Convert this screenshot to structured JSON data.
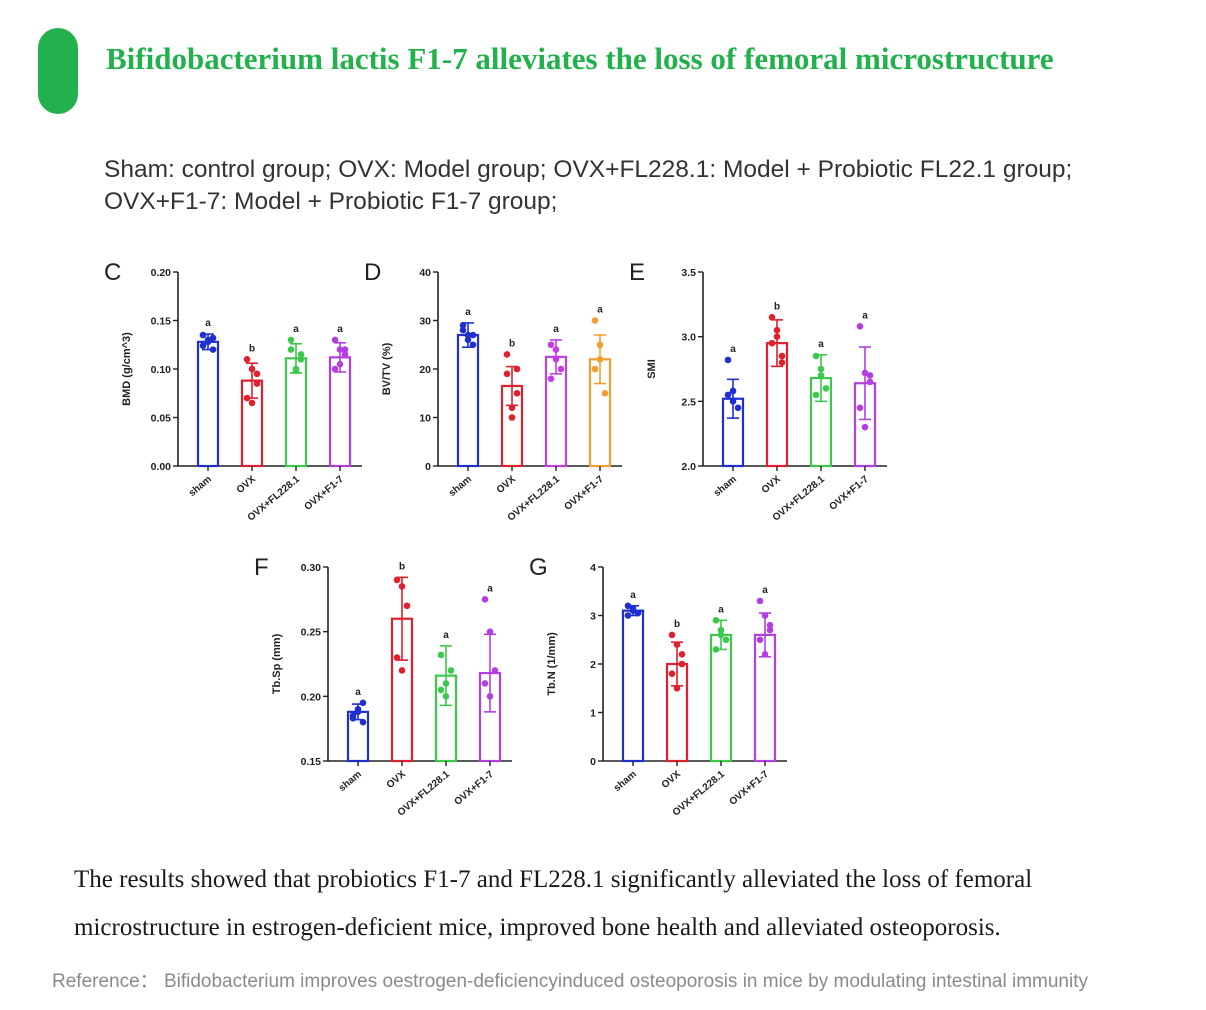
{
  "header": {
    "title": "Bifidobacterium lactis F1-7 alleviates the loss of femoral microstructure",
    "accent_color": "#22b14c"
  },
  "legend_text": {
    "line1": "Sham: control group; OVX: Model group; OVX+FL228.1: Model + Probiotic FL22.1 group;",
    "line2": "OVX+F1-7: Model + Probiotic F1-7 group;"
  },
  "results": {
    "line1": "The results showed that probiotics F1-7 and FL228.1 significantly alleviated the loss of femoral",
    "line2": "microstructure in estrogen-deficient mice, improved bone health and alleviated osteoporosis."
  },
  "reference": "Reference： Bifidobacterium improves oestrogen-deficiencyinduced osteoporosis in mice by modulating intestinal immunity",
  "chart_data": [
    {
      "panel": "C",
      "type": "bar",
      "categories": [
        "sham",
        "OVX",
        "OVX+FL228.1",
        "OVX+F1-7"
      ],
      "colors": [
        "#1f2fd0",
        "#e0202e",
        "#3cc84a",
        "#b33fe0"
      ],
      "ylabel": "BMD (g/cm^3)",
      "ylim": [
        0,
        0.2
      ],
      "yticks": [
        0.0,
        0.05,
        0.1,
        0.15,
        0.2
      ],
      "ytick_labels": [
        "0.00",
        "0.05",
        "0.10",
        "0.15",
        "0.20"
      ],
      "values": [
        0.128,
        0.088,
        0.111,
        0.112
      ],
      "errors": [
        0.008,
        0.018,
        0.015,
        0.015
      ],
      "significance": [
        "a",
        "b",
        "a",
        "a"
      ],
      "points": [
        [
          0.124,
          0.13,
          0.12,
          0.135,
          0.128,
          0.132
        ],
        [
          0.07,
          0.1,
          0.085,
          0.11,
          0.065,
          0.095
        ],
        [
          0.12,
          0.1,
          0.115,
          0.13,
          0.098,
          0.11
        ],
        [
          0.13,
          0.105,
          0.115,
          0.1,
          0.12,
          0.12
        ]
      ]
    },
    {
      "panel": "D",
      "type": "bar",
      "categories": [
        "sham",
        "OVX",
        "OVX+FL228.1",
        "OVX+F1-7"
      ],
      "colors": [
        "#1f2fd0",
        "#e0202e",
        "#c23fe0",
        "#f0a030"
      ],
      "ylabel": "BV/TV (%)",
      "ylim": [
        0,
        40
      ],
      "yticks": [
        0,
        10,
        20,
        30,
        40
      ],
      "ytick_labels": [
        "0",
        "10",
        "20",
        "30",
        "40"
      ],
      "values": [
        27,
        16.5,
        22.5,
        22
      ],
      "errors": [
        2.5,
        4,
        3.5,
        5
      ],
      "significance": [
        "a",
        "b",
        "a",
        "a"
      ],
      "points": [
        [
          29,
          27,
          25,
          28,
          26,
          27
        ],
        [
          23,
          12,
          15,
          19,
          10,
          20
        ],
        [
          25,
          22,
          20,
          18,
          24
        ],
        [
          30,
          25,
          15,
          20,
          22
        ]
      ]
    },
    {
      "panel": "E",
      "type": "bar",
      "categories": [
        "sham",
        "OVX",
        "OVX+FL228.1",
        "OVX+F1-7"
      ],
      "colors": [
        "#1f2fd0",
        "#e0202e",
        "#3cc84a",
        "#b33fe0"
      ],
      "ylabel": "SMI",
      "ylim": [
        2.0,
        3.5
      ],
      "yticks": [
        2.0,
        2.5,
        3.0,
        3.5
      ],
      "ytick_labels": [
        "2.0",
        "2.5",
        "3.0",
        "3.5"
      ],
      "values": [
        2.52,
        2.95,
        2.68,
        2.64
      ],
      "errors": [
        0.15,
        0.18,
        0.18,
        0.28
      ],
      "significance": [
        "a",
        "b",
        "a",
        "a"
      ],
      "points": [
        [
          2.82,
          2.5,
          2.45,
          2.55,
          2.58
        ],
        [
          3.15,
          3.0,
          2.85,
          2.95,
          3.05,
          2.8
        ],
        [
          2.85,
          2.7,
          2.6,
          2.55,
          2.75
        ],
        [
          3.08,
          2.72,
          2.65,
          2.45,
          2.3,
          2.7
        ]
      ]
    },
    {
      "panel": "F",
      "type": "bar",
      "categories": [
        "sham",
        "OVX",
        "OVX+FL228.1",
        "OVX+F1-7"
      ],
      "colors": [
        "#1f2fd0",
        "#e0202e",
        "#3cc84a",
        "#b33fe0"
      ],
      "ylabel": "Tb.Sp (mm)",
      "ylim": [
        0.15,
        0.3
      ],
      "yticks": [
        0.15,
        0.2,
        0.25,
        0.3
      ],
      "ytick_labels": [
        "0.15",
        "0.20",
        "0.25",
        "0.30"
      ],
      "values": [
        0.188,
        0.26,
        0.216,
        0.218
      ],
      "errors": [
        0.006,
        0.032,
        0.023,
        0.03
      ],
      "significance": [
        "a",
        "b",
        "a",
        "a"
      ],
      "points": [
        [
          0.183,
          0.19,
          0.195,
          0.185,
          0.188,
          0.18
        ],
        [
          0.29,
          0.285,
          0.27,
          0.23,
          0.22
        ],
        [
          0.232,
          0.21,
          0.22,
          0.205,
          0.2
        ],
        [
          0.275,
          0.25,
          0.22,
          0.21,
          0.2
        ]
      ]
    },
    {
      "panel": "G",
      "type": "bar",
      "categories": [
        "sham",
        "OVX",
        "OVX+FL228.1",
        "OVX+F1-7"
      ],
      "colors": [
        "#1f2fd0",
        "#e0202e",
        "#3cc84a",
        "#b33fe0"
      ],
      "ylabel": "Tb.N (1/mm)",
      "ylim": [
        0,
        4
      ],
      "yticks": [
        0,
        1,
        2,
        3,
        4
      ],
      "ytick_labels": [
        "0",
        "1",
        "2",
        "3",
        "4"
      ],
      "values": [
        3.1,
        2.0,
        2.6,
        2.6
      ],
      "errors": [
        0.1,
        0.45,
        0.3,
        0.45
      ],
      "significance": [
        "a",
        "b",
        "a",
        "a"
      ],
      "points": [
        [
          3.2,
          3.1,
          3.05,
          3.0,
          3.15
        ],
        [
          2.6,
          2.4,
          2.0,
          1.8,
          1.5,
          2.2
        ],
        [
          2.9,
          2.7,
          2.5,
          2.3,
          2.6
        ],
        [
          3.3,
          3.0,
          2.8,
          2.5,
          2.2,
          2.7
        ]
      ]
    }
  ]
}
